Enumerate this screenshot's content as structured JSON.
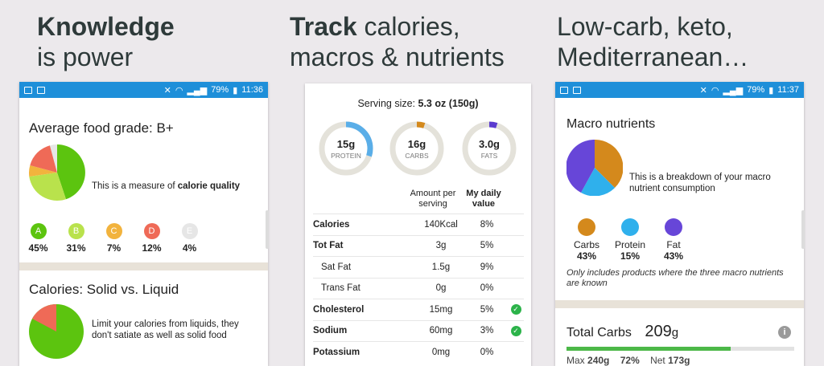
{
  "headlines": {
    "left": {
      "bold": "Knowledge",
      "rest": "is power"
    },
    "middle": {
      "bold": "Track",
      "rest1": " calories,",
      "rest2": "macros & nutrients"
    },
    "right": {
      "line1": "Low-carb, keto,",
      "line2": "Mediterranean…"
    }
  },
  "status_left": {
    "battery": "79%",
    "time": "11:36"
  },
  "status_right": {
    "battery": "79%",
    "time": "11:37"
  },
  "grade_card": {
    "title": "Average food grade: B+",
    "desc_prefix": "This is a measure of ",
    "desc_bold": "calorie quality",
    "grades": [
      {
        "letter": "A",
        "pct": "45%",
        "color": "#5cc40f"
      },
      {
        "letter": "B",
        "pct": "31%",
        "color": "#b9e24c"
      },
      {
        "letter": "C",
        "pct": "7%",
        "color": "#f2b33d"
      },
      {
        "letter": "D",
        "pct": "12%",
        "color": "#ef6a57"
      },
      {
        "letter": "E",
        "pct": "4%",
        "color": "#e6e6e6"
      }
    ]
  },
  "liquid_card": {
    "title": "Calories: Solid vs. Liquid",
    "desc": "Limit your calories from liquids, they don't satiate as well as solid food"
  },
  "nutrition": {
    "serving_label": "Serving size: ",
    "serving_value": "5.3 oz (150g)",
    "rings": [
      {
        "value": "15g",
        "label": "PROTEIN",
        "fraction": 0.3,
        "color": "#5aaee8"
      },
      {
        "value": "16g",
        "label": "CARBS",
        "fraction": 0.05,
        "color": "#d4891c"
      },
      {
        "value": "3.0g",
        "label": "FATS",
        "fraction": 0.05,
        "color": "#5b3ccf"
      }
    ],
    "col_amount": "Amount per serving",
    "col_daily": "My daily value",
    "rows": [
      {
        "name": "Calories",
        "amount": "140Kcal",
        "daily": "8%",
        "bold": true,
        "indent": false,
        "check": false
      },
      {
        "name": "Tot Fat",
        "amount": "3g",
        "daily": "5%",
        "bold": true,
        "indent": false,
        "check": false
      },
      {
        "name": "Sat Fat",
        "amount": "1.5g",
        "daily": "9%",
        "bold": false,
        "indent": true,
        "check": false
      },
      {
        "name": "Trans Fat",
        "amount": "0g",
        "daily": "0%",
        "bold": false,
        "indent": true,
        "check": false
      },
      {
        "name": "Cholesterol",
        "amount": "15mg",
        "daily": "5%",
        "bold": true,
        "indent": false,
        "check": true
      },
      {
        "name": "Sodium",
        "amount": "60mg",
        "daily": "3%",
        "bold": true,
        "indent": false,
        "check": true
      },
      {
        "name": "Potassium",
        "amount": "0mg",
        "daily": "0%",
        "bold": true,
        "indent": false,
        "check": false
      }
    ]
  },
  "macro_card": {
    "title": "Macro nutrients",
    "desc": "This is a breakdown of your macro nutrient consumption",
    "legend": [
      {
        "name": "Carbs",
        "pct": "43%",
        "color": "#d4891c"
      },
      {
        "name": "Protein",
        "pct": "15%",
        "color": "#2fb0ec"
      },
      {
        "name": "Fat",
        "pct": "43%",
        "color": "#6746d8"
      }
    ],
    "note": "Only includes products where the three macro nutrients are known"
  },
  "carbs_card": {
    "title": "Total Carbs",
    "value": "209",
    "unit": "g",
    "max_label": "Max ",
    "max_value": "240g",
    "pct": "72%",
    "net_label": "Net ",
    "net_value": "173g",
    "progress": 0.72
  },
  "colors": {
    "accent": "#1e8fd9",
    "progress": "#4cb848"
  }
}
